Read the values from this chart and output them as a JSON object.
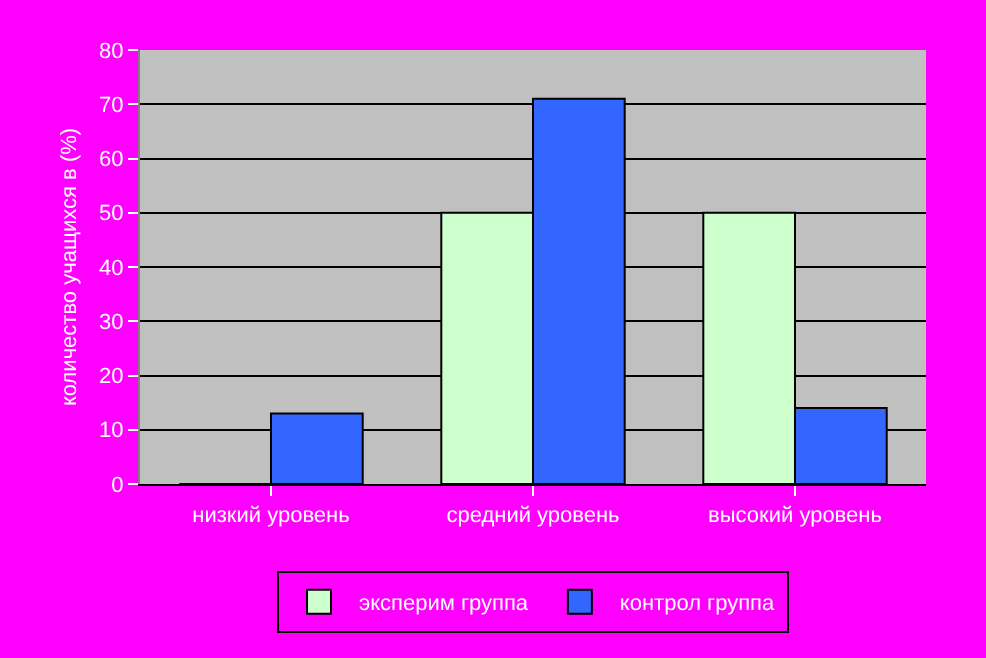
{
  "chart_data": {
    "type": "bar",
    "ylabel": "количество учащихся в (%)",
    "categories": [
      "низкий уровень",
      "средний уровень",
      "высокий уровень"
    ],
    "series": [
      {
        "name": "эксперим группа",
        "color": "#ccffcc",
        "values": [
          0,
          50,
          50
        ]
      },
      {
        "name": "контрол группа",
        "color": "#3366ff",
        "values": [
          13,
          71,
          14
        ]
      }
    ],
    "ylim": [
      0,
      80
    ],
    "yticks": [
      0,
      10,
      20,
      30,
      40,
      50,
      60,
      70,
      80
    ],
    "grid": true,
    "legend": "bottom"
  }
}
